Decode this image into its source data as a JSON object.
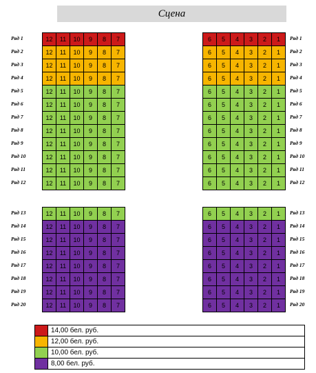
{
  "stage": "Сцена",
  "colors": {
    "red": "#cc1a1a",
    "orange": "#f7b500",
    "green": "#92d050",
    "purple": "#7030a0"
  },
  "left_seats": [
    "12",
    "11",
    "10",
    "9",
    "8",
    "7"
  ],
  "right_seats": [
    "6",
    "5",
    "4",
    "3",
    "2",
    "1"
  ],
  "section1": [
    {
      "row": "Ряд 1",
      "price": "red"
    },
    {
      "row": "Ряд 2",
      "price": "orange"
    },
    {
      "row": "Ряд 3",
      "price": "orange"
    },
    {
      "row": "Ряд 4",
      "price": "orange"
    },
    {
      "row": "Ряд 5",
      "price": "green"
    },
    {
      "row": "Ряд 6",
      "price": "green"
    },
    {
      "row": "Ряд 7",
      "price": "green"
    },
    {
      "row": "Ряд 8",
      "price": "green"
    },
    {
      "row": "Ряд 9",
      "price": "green"
    },
    {
      "row": "Ряд 10",
      "price": "green"
    },
    {
      "row": "Ряд 11",
      "price": "green"
    },
    {
      "row": "Ряд 12",
      "price": "green"
    }
  ],
  "section2": [
    {
      "row": "Ряд 13",
      "price": "green"
    },
    {
      "row": "Ряд 14",
      "price": "purple"
    },
    {
      "row": "Ряд 15",
      "price": "purple"
    },
    {
      "row": "Ряд 16",
      "price": "purple"
    },
    {
      "row": "Ряд 17",
      "price": "purple"
    },
    {
      "row": "Ряд 18",
      "price": "purple"
    },
    {
      "row": "Ряд 19",
      "price": "purple"
    },
    {
      "row": "Ряд 20",
      "price": "purple"
    }
  ],
  "legend": [
    {
      "price": "red",
      "text": "14,00 бел. руб."
    },
    {
      "price": "orange",
      "text": "12,00 бел. руб."
    },
    {
      "price": "green",
      "text": "10,00 бел. руб."
    },
    {
      "price": "purple",
      "text": "8,00 бел. руб."
    }
  ]
}
